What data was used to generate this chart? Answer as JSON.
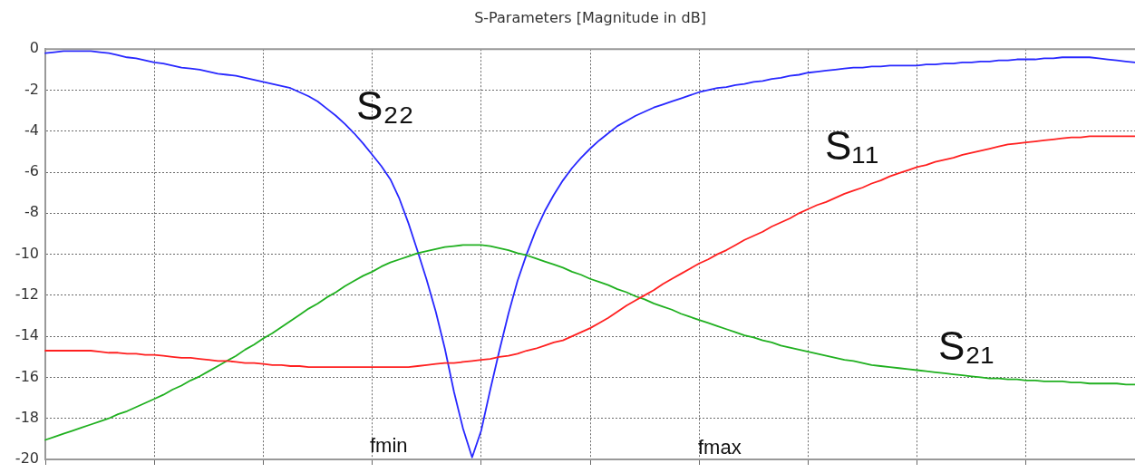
{
  "chart_data": {
    "type": "line",
    "title": "S-Parameters [Magnitude in dB]",
    "categories": [
      null,
      null,
      null,
      null,
      null,
      null,
      null,
      null,
      null,
      null,
      null,
      null,
      null,
      null,
      null,
      null,
      null,
      null,
      null,
      null,
      null,
      null,
      null,
      null,
      null,
      null,
      null,
      null,
      null,
      null,
      null,
      null,
      null,
      null,
      null,
      null,
      null,
      null,
      null,
      null,
      null,
      null,
      null,
      null,
      null,
      null,
      null,
      null,
      null,
      null,
      null,
      null,
      null,
      null,
      null,
      null,
      null,
      null,
      null,
      null,
      null,
      null,
      null,
      null,
      null,
      null,
      null,
      null,
      null,
      null,
      null,
      null,
      null,
      null,
      null,
      null,
      null,
      null,
      null,
      null,
      null,
      null,
      null,
      null,
      null,
      null,
      null,
      null,
      null,
      null,
      null,
      null,
      null,
      null,
      null,
      null,
      null,
      null,
      null,
      null,
      null,
      null,
      null,
      null,
      null,
      null,
      null,
      null,
      null,
      null,
      null,
      null,
      null,
      null,
      null,
      null,
      null,
      null,
      null,
      null,
      null
    ],
    "series": [
      {
        "name": "S₁₁",
        "color": "#ff2020",
        "values": [
          -14.7,
          -14.7,
          -14.7,
          -14.7,
          -14.7,
          -14.7,
          -14.75,
          -14.8,
          -14.8,
          -14.85,
          -14.85,
          -14.9,
          -14.9,
          -14.95,
          -15.0,
          -15.05,
          -15.05,
          -15.1,
          -15.15,
          -15.2,
          -15.2,
          -15.25,
          -15.3,
          -15.3,
          -15.35,
          -15.4,
          -15.4,
          -15.45,
          -15.45,
          -15.5,
          -15.5,
          -15.5,
          -15.5,
          -15.5,
          -15.5,
          -15.5,
          -15.5,
          -15.5,
          -15.5,
          -15.5,
          -15.5,
          -15.45,
          -15.4,
          -15.35,
          -15.3,
          -15.3,
          -15.25,
          -15.2,
          -15.15,
          -15.1,
          -15.0,
          -14.95,
          -14.85,
          -14.7,
          -14.6,
          -14.45,
          -14.3,
          -14.2,
          -14.0,
          -13.8,
          -13.6,
          -13.35,
          -13.1,
          -12.8,
          -12.5,
          -12.25,
          -12.0,
          -11.75,
          -11.45,
          -11.2,
          -10.95,
          -10.7,
          -10.45,
          -10.25,
          -10.0,
          -9.8,
          -9.55,
          -9.3,
          -9.1,
          -8.9,
          -8.65,
          -8.45,
          -8.25,
          -8.0,
          -7.8,
          -7.6,
          -7.45,
          -7.25,
          -7.05,
          -6.9,
          -6.75,
          -6.55,
          -6.4,
          -6.2,
          -6.05,
          -5.9,
          -5.75,
          -5.65,
          -5.5,
          -5.4,
          -5.3,
          -5.15,
          -5.05,
          -4.95,
          -4.85,
          -4.75,
          -4.65,
          -4.6,
          -4.55,
          -4.5,
          -4.45,
          -4.4,
          -4.35,
          -4.3,
          -4.3,
          -4.25,
          -4.25,
          -4.25,
          -4.25,
          -4.25,
          -4.25
        ]
      },
      {
        "name": "S₂₁",
        "color": "#20b020",
        "values": [
          -19.05,
          -18.9,
          -18.75,
          -18.6,
          -18.45,
          -18.3,
          -18.15,
          -18.0,
          -17.8,
          -17.65,
          -17.45,
          -17.25,
          -17.05,
          -16.85,
          -16.6,
          -16.4,
          -16.15,
          -15.95,
          -15.7,
          -15.45,
          -15.2,
          -14.95,
          -14.65,
          -14.4,
          -14.1,
          -13.85,
          -13.55,
          -13.25,
          -12.95,
          -12.65,
          -12.4,
          -12.1,
          -11.85,
          -11.55,
          -11.3,
          -11.05,
          -10.85,
          -10.6,
          -10.4,
          -10.25,
          -10.1,
          -9.95,
          -9.85,
          -9.75,
          -9.65,
          -9.6,
          -9.55,
          -9.55,
          -9.55,
          -9.6,
          -9.7,
          -9.8,
          -9.95,
          -10.05,
          -10.2,
          -10.35,
          -10.5,
          -10.65,
          -10.85,
          -11.0,
          -11.2,
          -11.35,
          -11.5,
          -11.7,
          -11.85,
          -12.05,
          -12.2,
          -12.4,
          -12.55,
          -12.7,
          -12.9,
          -13.05,
          -13.2,
          -13.35,
          -13.5,
          -13.65,
          -13.8,
          -13.95,
          -14.05,
          -14.2,
          -14.3,
          -14.45,
          -14.55,
          -14.65,
          -14.75,
          -14.85,
          -14.95,
          -15.05,
          -15.15,
          -15.2,
          -15.3,
          -15.4,
          -15.45,
          -15.5,
          -15.55,
          -15.6,
          -15.65,
          -15.7,
          -15.75,
          -15.8,
          -15.85,
          -15.9,
          -15.95,
          -16.0,
          -16.05,
          -16.05,
          -16.1,
          -16.1,
          -16.15,
          -16.15,
          -16.2,
          -16.2,
          -16.2,
          -16.25,
          -16.25,
          -16.3,
          -16.3,
          -16.3,
          -16.3,
          -16.35,
          -16.35
        ]
      },
      {
        "name": "S₂₂",
        "color": "#2828ff",
        "values": [
          -0.2,
          -0.15,
          -0.1,
          -0.1,
          -0.1,
          -0.1,
          -0.15,
          -0.2,
          -0.3,
          -0.4,
          -0.45,
          -0.55,
          -0.65,
          -0.7,
          -0.8,
          -0.9,
          -0.95,
          -1.0,
          -1.1,
          -1.2,
          -1.25,
          -1.3,
          -1.4,
          -1.5,
          -1.6,
          -1.7,
          -1.8,
          -1.9,
          -2.1,
          -2.3,
          -2.55,
          -2.9,
          -3.25,
          -3.65,
          -4.1,
          -4.6,
          -5.15,
          -5.7,
          -6.35,
          -7.3,
          -8.5,
          -9.85,
          -11.25,
          -12.8,
          -14.6,
          -16.7,
          -18.5,
          -19.9,
          -18.6,
          -16.6,
          -14.7,
          -12.9,
          -11.3,
          -10.0,
          -8.85,
          -7.9,
          -7.1,
          -6.4,
          -5.8,
          -5.3,
          -4.85,
          -4.45,
          -4.1,
          -3.75,
          -3.5,
          -3.25,
          -3.05,
          -2.85,
          -2.7,
          -2.55,
          -2.4,
          -2.25,
          -2.1,
          -2.0,
          -1.9,
          -1.85,
          -1.75,
          -1.7,
          -1.6,
          -1.55,
          -1.45,
          -1.4,
          -1.3,
          -1.25,
          -1.15,
          -1.1,
          -1.05,
          -1.0,
          -0.95,
          -0.9,
          -0.9,
          -0.85,
          -0.85,
          -0.8,
          -0.8,
          -0.8,
          -0.8,
          -0.75,
          -0.75,
          -0.7,
          -0.7,
          -0.65,
          -0.65,
          -0.6,
          -0.6,
          -0.55,
          -0.55,
          -0.5,
          -0.5,
          -0.5,
          -0.45,
          -0.45,
          -0.4,
          -0.4,
          -0.4,
          -0.4,
          -0.45,
          -0.5,
          -0.55,
          -0.6,
          -0.65
        ]
      }
    ],
    "ylim": [
      -20,
      0
    ],
    "yticks": [
      -20,
      -18,
      -16,
      -14,
      -12,
      -10,
      -8,
      -6,
      -4,
      -2,
      0
    ],
    "grid": true,
    "tick_labels": "y",
    "annotations": [
      "fmin",
      "fmax"
    ]
  }
}
